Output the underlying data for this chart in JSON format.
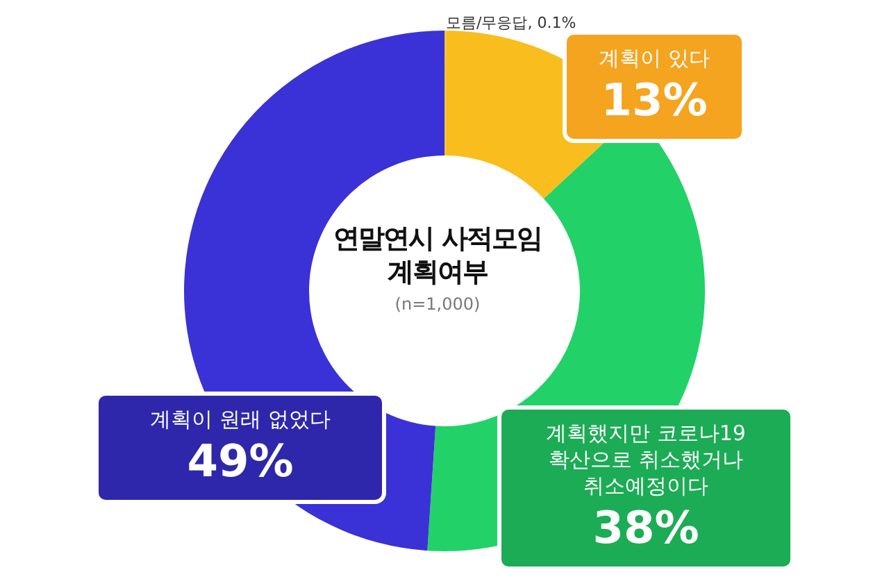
{
  "chart_data": {
    "type": "donut",
    "title": "연말연시 사적모임 계획여부",
    "subtitle": "(n=1,000)",
    "categories": [
      "모름/무응답",
      "계획이 있다",
      "계획했지만 코로나19 확산으로 취소했거나 취소예정이다",
      "계획이 원래 없었다"
    ],
    "values": [
      0.1,
      13,
      38,
      49
    ],
    "value_labels": [
      "0.1%",
      "13%",
      "38%",
      "49%"
    ],
    "colors": [
      "#f2c230",
      "#f9be1e",
      "#22d268",
      "#3a31d6"
    ],
    "legend": false
  }
}
